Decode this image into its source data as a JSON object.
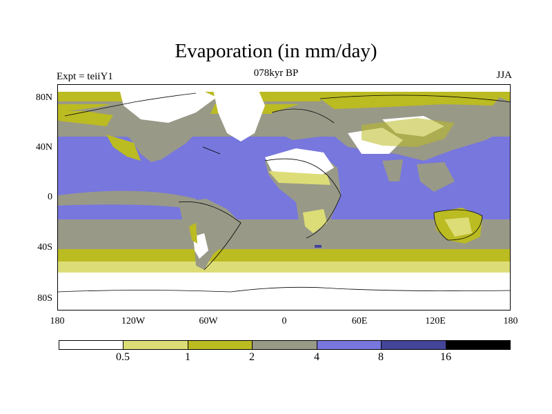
{
  "title": "Evaporation (in mm/day)",
  "subtitle": "078kyr BP",
  "left_label": "Expt = teiiY1",
  "right_label": "JJA",
  "axes": {
    "y_ticks": [
      "80N",
      "40N",
      "0",
      "40S",
      "80S"
    ],
    "x_ticks": [
      "180",
      "120W",
      "60W",
      "0",
      "60E",
      "120E",
      "180"
    ]
  },
  "colorbar": {
    "colors": [
      "#ffffff",
      "#dddd77",
      "#bbbb22",
      "#999988",
      "#7777dd",
      "#444499",
      "#000000"
    ],
    "labels": [
      "0.5",
      "1",
      "2",
      "4",
      "8",
      "16"
    ]
  },
  "chart_data": {
    "type": "heatmap",
    "title": "Evaporation (in mm/day)",
    "subtitle": "078kyr BP",
    "lon_range": [
      -180,
      180
    ],
    "lat_range": [
      -90,
      90
    ],
    "levels": [
      0.5,
      1,
      2,
      4,
      8,
      16
    ],
    "season": "JJA",
    "projection": "cylindrical equidistant",
    "background": "continent outlines"
  }
}
